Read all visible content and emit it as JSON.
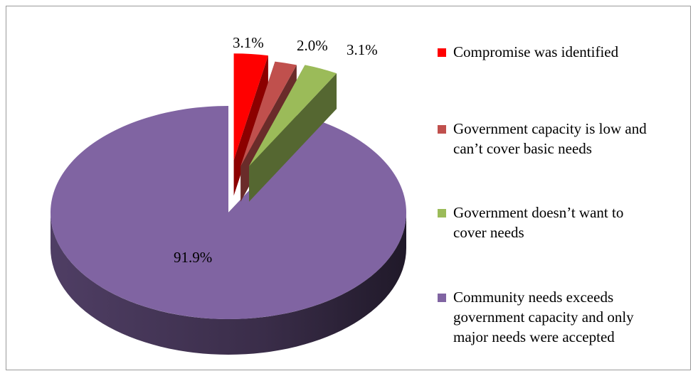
{
  "chart_data": {
    "type": "pie",
    "title": "",
    "series": [
      {
        "name": "Compromise was identified",
        "value": 3.1,
        "label": "3.1%",
        "color": "#ff0000",
        "exploded": true
      },
      {
        "name": "Government capacity is low and\ncan’t cover basic needs",
        "value": 2.0,
        "label": "2.0%",
        "color": "#c0504d",
        "exploded": true
      },
      {
        "name": "Government doesn’t want to\ncover needs",
        "value": 3.1,
        "label": "3.1%",
        "color": "#9bbb59",
        "exploded": true
      },
      {
        "name": "Community needs exceeds\ngovernment capacity and only\nmajor needs were accepted",
        "value": 91.9,
        "label": "91.9%",
        "color": "#8064a2",
        "exploded": false
      }
    ],
    "legend_position": "right",
    "style": "3d-exploded"
  }
}
